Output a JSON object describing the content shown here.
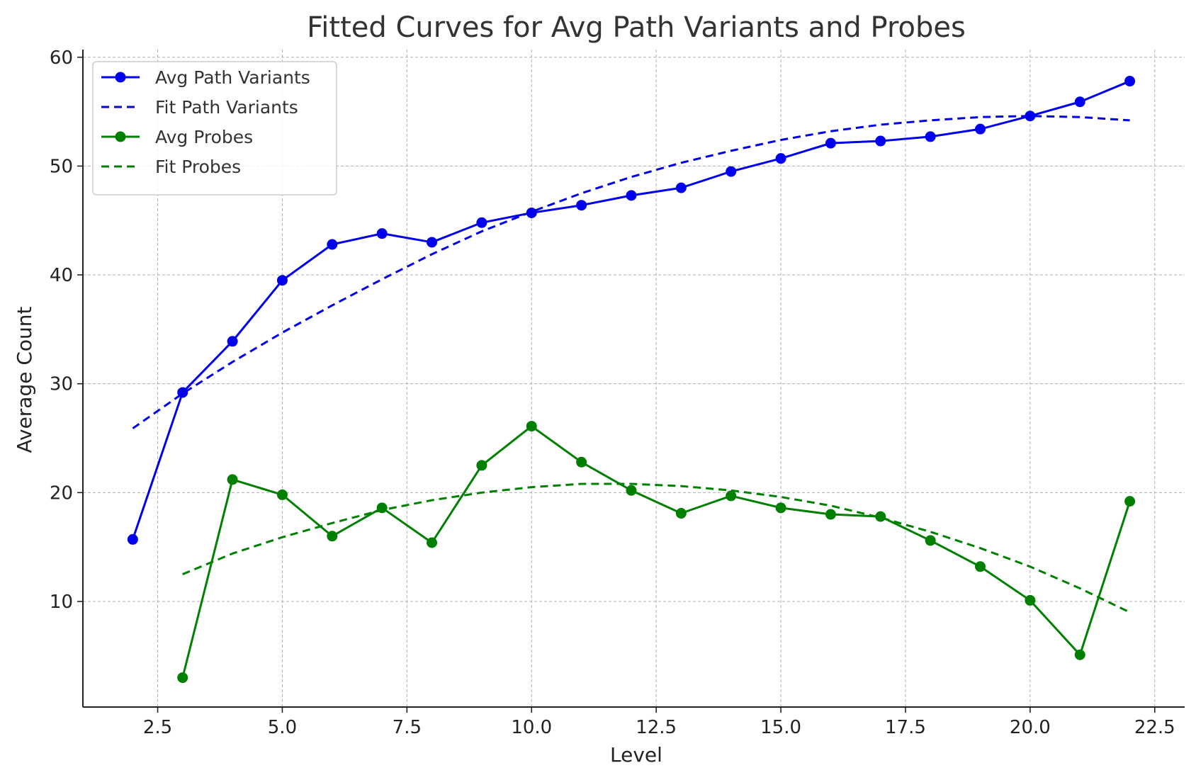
{
  "chart_data": {
    "type": "line",
    "title": "Fitted Curves for Avg Path Variants and Probes",
    "xlabel": "Level",
    "ylabel": "Average Count",
    "xlim": [
      1.0,
      23.1
    ],
    "ylim": [
      0.3,
      60.7
    ],
    "xticks": [
      2.5,
      5.0,
      7.5,
      10.0,
      12.5,
      15.0,
      17.5,
      20.0,
      22.5
    ],
    "xtick_labels": [
      "2.5",
      "5.0",
      "7.5",
      "10.0",
      "12.5",
      "15.0",
      "17.5",
      "20.0",
      "22.5"
    ],
    "yticks": [
      10,
      20,
      30,
      40,
      50,
      60
    ],
    "ytick_labels": [
      "10",
      "20",
      "30",
      "40",
      "50",
      "60"
    ],
    "grid": true,
    "legend_position": "top-left",
    "series": [
      {
        "name": "Avg Path Variants",
        "style": "solid-markers",
        "color": "#0000ee",
        "x": [
          2,
          3,
          4,
          5,
          6,
          7,
          8,
          9,
          10,
          11,
          12,
          13,
          14,
          15,
          16,
          17,
          18,
          19,
          20,
          21,
          22
        ],
        "y": [
          15.7,
          29.2,
          33.9,
          39.5,
          42.8,
          43.8,
          43.0,
          44.8,
          45.7,
          46.4,
          47.3,
          48.0,
          49.5,
          50.7,
          52.1,
          52.3,
          52.7,
          53.4,
          54.6,
          55.9,
          57.8
        ]
      },
      {
        "name": "Fit Path Variants",
        "style": "dashed",
        "color": "#0000ee",
        "x": [
          2,
          3,
          4,
          5,
          6,
          7,
          8,
          9,
          10,
          11,
          12,
          13,
          14,
          15,
          16,
          17,
          18,
          19,
          20,
          21,
          22
        ],
        "y": [
          25.9,
          29.1,
          32.0,
          34.7,
          37.2,
          39.6,
          41.9,
          44.0,
          45.8,
          47.5,
          49.0,
          50.3,
          51.4,
          52.4,
          53.2,
          53.8,
          54.2,
          54.5,
          54.6,
          54.5,
          54.2
        ]
      },
      {
        "name": "Avg Probes",
        "style": "solid-markers",
        "color": "#008000",
        "x": [
          3,
          4,
          5,
          6,
          7,
          8,
          9,
          10,
          11,
          12,
          13,
          14,
          15,
          16,
          17,
          18,
          19,
          20,
          21,
          22
        ],
        "y": [
          3.0,
          21.2,
          19.8,
          16.0,
          18.6,
          15.4,
          22.5,
          26.1,
          22.8,
          20.2,
          18.1,
          19.7,
          18.6,
          18.0,
          17.8,
          15.6,
          13.2,
          10.1,
          5.1,
          19.2
        ]
      },
      {
        "name": "Fit Probes",
        "style": "dashed",
        "color": "#008000",
        "x": [
          3,
          4,
          5,
          6,
          7,
          8,
          9,
          10,
          11,
          12,
          13,
          14,
          15,
          16,
          17,
          18,
          19,
          20,
          21,
          22
        ],
        "y": [
          12.5,
          14.4,
          15.9,
          17.2,
          18.4,
          19.3,
          20.0,
          20.5,
          20.8,
          20.8,
          20.6,
          20.2,
          19.6,
          18.8,
          17.7,
          16.4,
          14.9,
          13.2,
          11.2,
          9.0
        ]
      }
    ]
  }
}
